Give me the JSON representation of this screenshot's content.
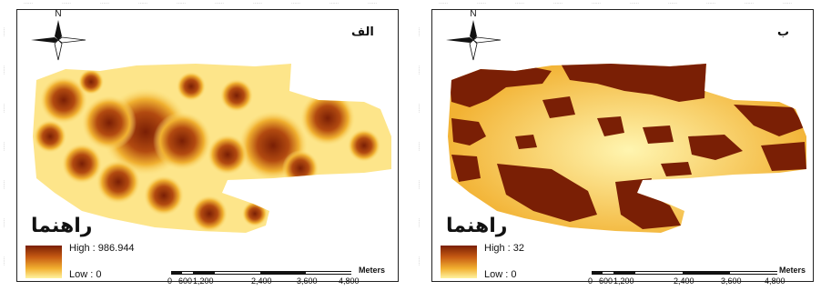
{
  "panels": [
    {
      "id": "left",
      "letter": "الف",
      "title": "راهنما",
      "north_label": "N",
      "legend": {
        "high": "High : 986.944",
        "low": "Low : 0"
      },
      "scale": {
        "labels": [
          "0",
          "600",
          "1,200",
          "2,400",
          "3,600",
          "4,800"
        ],
        "units": "Meters"
      },
      "colors": {
        "low": "#fff3a0",
        "mid": "#f2b030",
        "high": "#7a1f05"
      }
    },
    {
      "id": "right",
      "letter": "ب",
      "title": "راهنما",
      "north_label": "N",
      "legend": {
        "high": "High : 32",
        "low": "Low : 0"
      },
      "scale": {
        "labels": [
          "0",
          "600",
          "1,200",
          "2,400",
          "3,600",
          "4,800"
        ],
        "units": "Meters"
      },
      "colors": {
        "low": "#fff3a0",
        "mid": "#f2b030",
        "high": "#7a1f05"
      }
    }
  ]
}
